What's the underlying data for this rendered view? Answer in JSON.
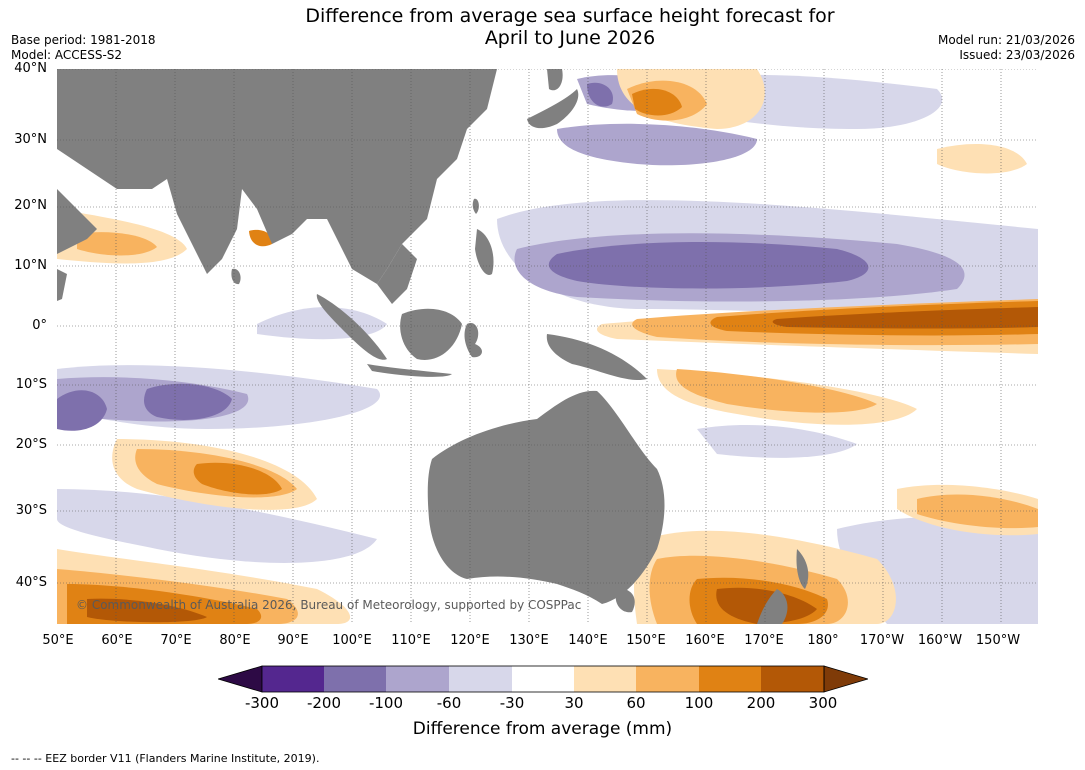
{
  "title": {
    "line1": "Difference from average sea surface height forecast for",
    "line2": "April to June 2026"
  },
  "meta_left": {
    "base_period": "Base period: 1981-2018",
    "model": "Model: ACCESS-S2"
  },
  "meta_right": {
    "model_run": "Model run: 21/03/2026",
    "issued": "Issued: 23/03/2026"
  },
  "lat_labels": [
    "40°N",
    "30°N",
    "20°N",
    "10°N",
    "0°",
    "10°S",
    "20°S",
    "30°S",
    "40°S"
  ],
  "lon_labels": [
    "50°E",
    "60°E",
    "70°E",
    "80°E",
    "90°E",
    "100°E",
    "110°E",
    "120°E",
    "130°E",
    "140°E",
    "150°E",
    "160°E",
    "170°E",
    "180°",
    "170°W",
    "160°W",
    "150°W"
  ],
  "copyright": "© Commonwealth of Australia 2026, Bureau of Meteorology, supported by COSPPac",
  "colorbar": {
    "ticks": [
      "-300",
      "-200",
      "-100",
      "-60",
      "-30",
      "30",
      "60",
      "100",
      "200",
      "300"
    ],
    "label": "Difference from average (mm)",
    "colors": {
      "below_min": "#2d0a45",
      "c1": "#54278f",
      "c2": "#7e70ac",
      "c3": "#ada5cd",
      "c4": "#d7d7ea",
      "c5": "#ffffff",
      "c6": "#fee0b4",
      "c7": "#f8b35f",
      "c8": "#e08214",
      "c9": "#b35806",
      "above_max": "#7f3b08"
    }
  },
  "land_color": "#808080",
  "footnote": "--  --  -- EEZ border V11 (Flanders Marine Institute, 2019)."
}
